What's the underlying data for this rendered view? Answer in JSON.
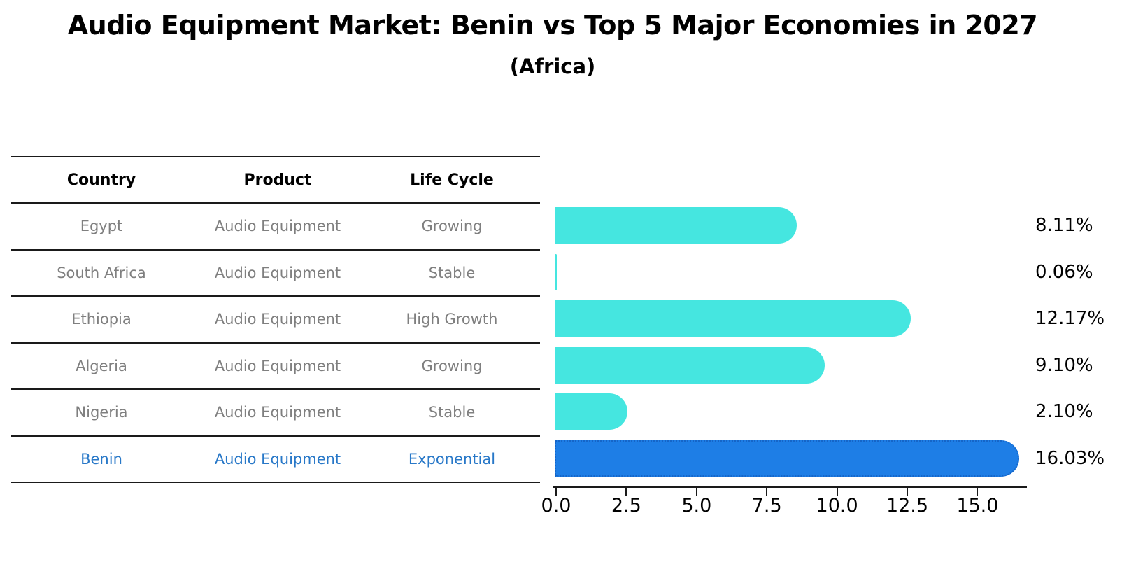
{
  "header": {
    "title": "Audio Equipment Market: Benin vs Top 5 Major Economies in 2027",
    "subtitle": "(Africa)"
  },
  "colors": {
    "bar_default": "#45E6E0",
    "bar_highlight": "#1E7EE6",
    "highlight_border": "#1565C8",
    "highlight_text": "#2878C8",
    "cell_text": "#7f7f7f",
    "line": "#1a1a1a"
  },
  "table": {
    "columns": [
      "Country",
      "Product",
      "Life Cycle"
    ],
    "rows": [
      {
        "country": "Egypt",
        "product": "Audio Equipment",
        "life_cycle": "Growing",
        "highlighted": false
      },
      {
        "country": "South Africa",
        "product": "Audio Equipment",
        "life_cycle": "Stable",
        "highlighted": false
      },
      {
        "country": "Ethiopia",
        "product": "Audio Equipment",
        "life_cycle": "High Growth",
        "highlighted": false
      },
      {
        "country": "Algeria",
        "product": "Audio Equipment",
        "life_cycle": "Growing",
        "highlighted": false
      },
      {
        "country": "Nigeria",
        "product": "Audio Equipment",
        "life_cycle": "Stable",
        "highlighted": false
      },
      {
        "country": "Benin",
        "product": "Audio Equipment",
        "life_cycle": "Exponential",
        "highlighted": true
      }
    ]
  },
  "chart_data": {
    "type": "bar",
    "orientation": "horizontal",
    "title": "Audio Equipment Market: Benin vs Top 5 Major Economies in 2027",
    "subtitle": "(Africa)",
    "categories": [
      "Egypt",
      "South Africa",
      "Ethiopia",
      "Algeria",
      "Nigeria",
      "Benin"
    ],
    "values": [
      8.11,
      0.06,
      12.17,
      9.1,
      2.1,
      16.03
    ],
    "value_labels": [
      "8.11%",
      "0.06%",
      "12.17%",
      "9.10%",
      "2.10%",
      "16.03%"
    ],
    "highlight_index": 5,
    "xlabel": "",
    "ylabel": "",
    "xticks": [
      0.0,
      2.5,
      5.0,
      7.5,
      10.0,
      12.5,
      15.0
    ],
    "xtick_labels": [
      "0.0",
      "2.5",
      "5.0",
      "7.5",
      "10.0",
      "12.5",
      "15.0"
    ],
    "xlim": [
      0,
      16.8
    ],
    "grid": false,
    "legend": false
  }
}
